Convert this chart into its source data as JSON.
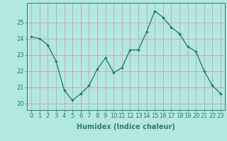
{
  "x": [
    0,
    1,
    2,
    3,
    4,
    5,
    6,
    7,
    8,
    9,
    10,
    11,
    12,
    13,
    14,
    15,
    16,
    17,
    18,
    19,
    20,
    21,
    22,
    23
  ],
  "y": [
    24.1,
    24.0,
    23.6,
    22.6,
    20.8,
    20.2,
    20.6,
    21.1,
    22.1,
    22.8,
    21.9,
    22.2,
    23.3,
    23.3,
    24.4,
    25.7,
    25.3,
    24.7,
    24.3,
    23.5,
    23.2,
    22.0,
    21.1,
    20.6
  ],
  "line_color": "#2e7d6e",
  "marker": "D",
  "markersize": 2.0,
  "linewidth": 1.0,
  "bg_color": "#b2e8df",
  "grid_color": "#cc9999",
  "xlabel": "Humidex (Indice chaleur)",
  "xlabel_fontsize": 7,
  "xtick_labels": [
    "0",
    "1",
    "2",
    "3",
    "4",
    "5",
    "6",
    "7",
    "8",
    "9",
    "10",
    "11",
    "12",
    "13",
    "14",
    "15",
    "16",
    "17",
    "18",
    "19",
    "20",
    "21",
    "22",
    "23"
  ],
  "ytick_labels": [
    "20",
    "21",
    "22",
    "23",
    "24",
    "25"
  ],
  "ylim": [
    19.6,
    26.2
  ],
  "xlim": [
    -0.5,
    23.5
  ],
  "tick_fontsize": 6.0,
  "grid_linewidth": 0.5,
  "ylabel_fontsize": 7
}
